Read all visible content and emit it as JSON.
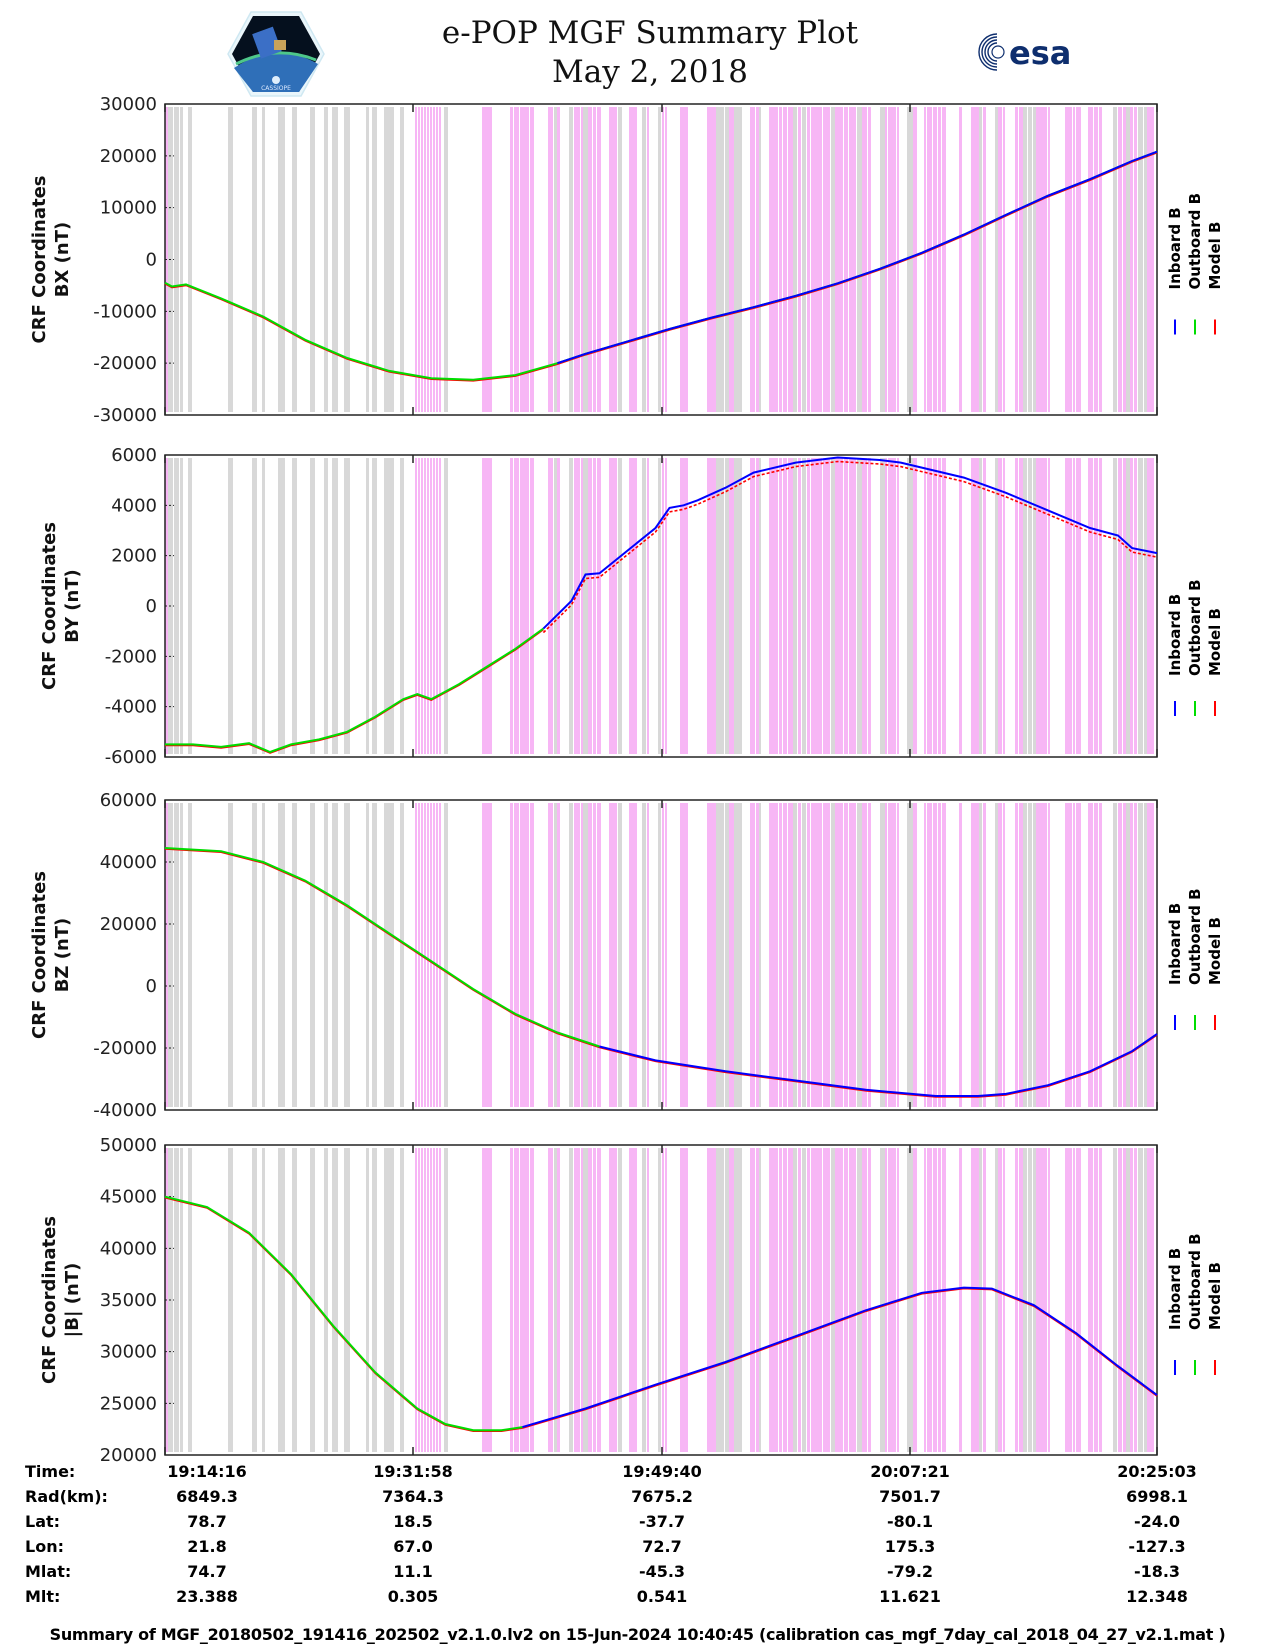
{
  "header": {
    "title_line1": "e-POP MGF Summary Plot",
    "title_line2": "May 2, 2018",
    "mission_logo": "cassiope-mission-logo",
    "mission_logo_text": "CASSIOPE",
    "agency_logo": "esa-logo",
    "agency_logo_text": "esa"
  },
  "colors": {
    "inboard": "#0000ff",
    "outboard": "#00dd00",
    "model": "#ff0000",
    "highlight_pink": "#f7b6f5",
    "highlight_gray": "#d8d8d8"
  },
  "legend": [
    {
      "label": "Inboard B",
      "color": "#0000ff"
    },
    {
      "label": "Outboard B",
      "color": "#00dd00"
    },
    {
      "label": "Model B",
      "color": "#ff0000"
    }
  ],
  "chart_data": [
    {
      "type": "line",
      "title": "",
      "ylabel_line1": "CRF Coordinates",
      "ylabel_line2": "BX (nT)",
      "ylim": [
        -30000,
        30000
      ],
      "yticks": [
        30000,
        20000,
        10000,
        0,
        -10000,
        -20000,
        -30000
      ],
      "xlim_minutes": [
        0,
        70.78
      ],
      "x_unit": "minutes since 19:14:16",
      "series": [
        {
          "name": "Outboard B",
          "x": [
            0,
            0.5,
            1.5,
            4,
            7,
            10,
            13,
            16,
            19,
            22,
            25,
            28,
            30,
            33,
            36,
            39,
            42,
            45,
            48,
            51,
            54,
            57,
            60,
            63,
            66,
            69,
            70.78
          ],
          "y": [
            -4500,
            -5200,
            -4800,
            -7500,
            -11000,
            -15500,
            -19000,
            -21500,
            -22900,
            -23200,
            -22300,
            -20000,
            -18200,
            -15800,
            -13400,
            -11200,
            -9200,
            -7000,
            -4600,
            -1800,
            1300,
            4800,
            8600,
            12300,
            15500,
            19000,
            20800
          ]
        },
        {
          "name": "Inboard B",
          "x_start": 28,
          "note": "Inboard B plotted from ~19:42 onward, overlapping Outboard B and Model B"
        },
        {
          "name": "Model B",
          "note": "Model B closely follows measured field"
        }
      ]
    },
    {
      "type": "line",
      "ylabel_line1": "CRF Coordinates",
      "ylabel_line2": "BY (nT)",
      "ylim": [
        -6000,
        6000
      ],
      "yticks": [
        6000,
        4000,
        2000,
        0,
        -2000,
        -4000,
        -6000
      ],
      "xlim_minutes": [
        0,
        70.78
      ],
      "series": [
        {
          "name": "Outboard B",
          "x": [
            0,
            2,
            4,
            6,
            7.5,
            9,
            11,
            13,
            15,
            17,
            18,
            19,
            20,
            21,
            23,
            25,
            27
          ],
          "y": [
            -5500,
            -5500,
            -5600,
            -5450,
            -5800,
            -5500,
            -5300,
            -5000,
            -4400,
            -3700,
            -3500,
            -3700,
            -3400,
            -3100,
            -2400,
            -1700,
            -900
          ]
        },
        {
          "name": "Inboard B",
          "x": [
            27,
            29,
            30,
            31,
            33,
            35,
            36,
            37,
            38,
            40,
            42,
            45,
            48,
            51,
            52.5,
            54,
            57,
            60,
            63,
            66,
            68,
            69,
            70.78
          ],
          "y": [
            -900,
            200,
            1250,
            1300,
            2200,
            3100,
            3900,
            4000,
            4200,
            4700,
            5300,
            5700,
            5900,
            5800,
            5700,
            5500,
            5100,
            4500,
            3800,
            3100,
            2800,
            2300,
            2100
          ]
        },
        {
          "name": "Model B",
          "note": "Model B slightly below Inboard B in right half (offset ~150 nT)"
        }
      ]
    },
    {
      "type": "line",
      "ylabel_line1": "CRF Coordinates",
      "ylabel_line2": "BZ (nT)",
      "ylim": [
        -40000,
        60000
      ],
      "yticks": [
        60000,
        40000,
        20000,
        0,
        -20000,
        -40000
      ],
      "xlim_minutes": [
        0,
        70.78
      ],
      "series": [
        {
          "name": "Outboard B",
          "x": [
            0,
            4,
            7,
            10,
            13,
            16,
            19,
            22,
            25,
            28,
            31
          ],
          "y": [
            44500,
            43500,
            40000,
            34000,
            26000,
            17000,
            8000,
            -1000,
            -9000,
            -15000,
            -19500
          ]
        },
        {
          "name": "Inboard B",
          "x": [
            31,
            35,
            40,
            45,
            50,
            55,
            58,
            60,
            63,
            66,
            69,
            70.78
          ],
          "y": [
            -19500,
            -24000,
            -27500,
            -30500,
            -33500,
            -35500,
            -35500,
            -34800,
            -32000,
            -27500,
            -21000,
            -15500
          ]
        }
      ]
    },
    {
      "type": "line",
      "ylabel_line1": "CRF Coordinates",
      "ylabel_line2": "|B| (nT)",
      "ylim": [
        20000,
        50000
      ],
      "yticks": [
        50000,
        45000,
        40000,
        35000,
        30000,
        25000,
        20000
      ],
      "xlim_minutes": [
        0,
        70.78
      ],
      "series": [
        {
          "name": "Outboard B",
          "x": [
            0,
            3,
            6,
            9,
            12,
            15,
            18,
            20,
            22,
            24,
            25.5
          ],
          "y": [
            45000,
            44000,
            41500,
            37500,
            32500,
            28000,
            24500,
            23000,
            22400,
            22400,
            22700
          ]
        },
        {
          "name": "Inboard B",
          "x": [
            25.5,
            30,
            35,
            40,
            45,
            50,
            54,
            57,
            59,
            62,
            65,
            68,
            70.78
          ],
          "y": [
            22700,
            24500,
            26800,
            29000,
            31500,
            34000,
            35700,
            36200,
            36100,
            34500,
            31800,
            28600,
            25800
          ]
        }
      ]
    }
  ],
  "x_axis": {
    "tick_times": [
      "19:14:16",
      "19:31:58",
      "19:49:40",
      "20:07:21",
      "20:25:03"
    ]
  },
  "ephemeris": {
    "rows": [
      {
        "label": "Time:",
        "values": [
          "19:14:16",
          "19:31:58",
          "19:49:40",
          "20:07:21",
          "20:25:03"
        ]
      },
      {
        "label": "Rad(km):",
        "values": [
          "6849.3",
          "7364.3",
          "7675.2",
          "7501.7",
          "6998.1"
        ]
      },
      {
        "label": "Lat:",
        "values": [
          "78.7",
          "18.5",
          "-37.7",
          "-80.1",
          "-24.0"
        ]
      },
      {
        "label": "Lon:",
        "values": [
          "21.8",
          "67.0",
          "72.7",
          "175.3",
          "-127.3"
        ]
      },
      {
        "label": "Mlat:",
        "values": [
          "74.7",
          "11.1",
          "-45.3",
          "-79.2",
          "-18.3"
        ]
      },
      {
        "label": "Mlt:",
        "values": [
          "23.388",
          "0.305",
          "0.541",
          "11.621",
          "12.348"
        ]
      }
    ]
  },
  "footer": "Summary of MGF_20180502_191416_202502_v2.1.0.lv2 on 15-Jun-2024 10:40:45 (calibration cas_mgf_7day_cal_2018_04_27_v2.1.mat )"
}
